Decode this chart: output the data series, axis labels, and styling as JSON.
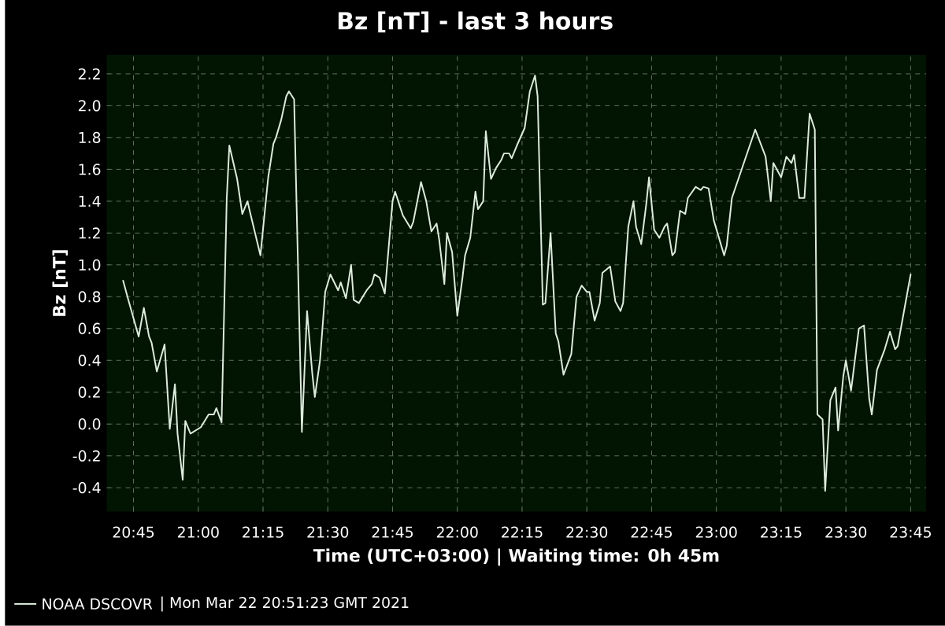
{
  "chart_data": {
    "type": "line",
    "title": "Bz [nT] - last 3 hours",
    "xlabel": "Time (UTC+03:00) | Waiting time: 0h 45m",
    "ylabel": "Bz [nT]",
    "annotations": [
      "| Mon Mar 22 20:51:23 GMT 2021"
    ],
    "xlim": [
      20.647,
      23.81
    ],
    "ylim": [
      -0.55,
      2.32
    ],
    "xticks": [
      {
        "value": 20.75,
        "label": "20:45"
      },
      {
        "value": 21.0,
        "label": "21:00"
      },
      {
        "value": 21.25,
        "label": "21:15"
      },
      {
        "value": 21.5,
        "label": "21:30"
      },
      {
        "value": 21.75,
        "label": "21:45"
      },
      {
        "value": 22.0,
        "label": "22:00"
      },
      {
        "value": 22.25,
        "label": "22:15"
      },
      {
        "value": 22.5,
        "label": "22:30"
      },
      {
        "value": 22.75,
        "label": "22:45"
      },
      {
        "value": 23.0,
        "label": "23:00"
      },
      {
        "value": 23.25,
        "label": "23:15"
      },
      {
        "value": 23.5,
        "label": "23:30"
      },
      {
        "value": 23.75,
        "label": "23:45"
      }
    ],
    "yticks": [
      {
        "value": -0.4,
        "label": "-0.4"
      },
      {
        "value": -0.2,
        "label": "-0.2"
      },
      {
        "value": 0,
        "label": "0.0"
      },
      {
        "value": 0.2,
        "label": "0.2"
      },
      {
        "value": 0.4,
        "label": "0.4"
      },
      {
        "value": 0.6,
        "label": "0.6"
      },
      {
        "value": 0.8,
        "label": "0.8"
      },
      {
        "value": 1.0,
        "label": "1.0"
      },
      {
        "value": 1.2,
        "label": "1.2"
      },
      {
        "value": 1.4,
        "label": "1.4"
      },
      {
        "value": 1.6,
        "label": "1.6"
      },
      {
        "value": 1.8,
        "label": "1.8"
      },
      {
        "value": 2.0,
        "label": "2.0"
      },
      {
        "value": 2.2,
        "label": "2.2"
      }
    ],
    "grid": true,
    "legend": "bottom",
    "marker": "none",
    "line_style": "solid",
    "series": [
      {
        "name": "NOAA DSCOVR",
        "color": "#dcecdc",
        "x": [
          20.71,
          20.73,
          20.77,
          20.79,
          20.81,
          20.82,
          20.84,
          20.87,
          20.89,
          20.91,
          20.92,
          20.94,
          20.95,
          20.97,
          21.01,
          21.04,
          21.06,
          21.07,
          21.09,
          21.11,
          21.12,
          21.15,
          21.17,
          21.19,
          21.2,
          21.24,
          21.27,
          21.29,
          21.3,
          21.32,
          21.34,
          21.35,
          21.37,
          21.4,
          21.42,
          21.44,
          21.45,
          21.47,
          21.49,
          21.51,
          21.54,
          21.55,
          21.57,
          21.59,
          21.6,
          21.62,
          21.65,
          21.67,
          21.68,
          21.7,
          21.72,
          21.75,
          21.76,
          21.79,
          21.82,
          21.83,
          21.86,
          21.88,
          21.9,
          21.92,
          21.93,
          21.95,
          21.96,
          21.98,
          22.0,
          22.02,
          22.03,
          22.05,
          22.07,
          22.08,
          22.1,
          22.11,
          22.13,
          22.15,
          22.17,
          22.18,
          22.2,
          22.21,
          22.23,
          22.26,
          22.28,
          22.3,
          22.31,
          22.33,
          22.34,
          22.36,
          22.38,
          22.39,
          22.41,
          22.44,
          22.46,
          22.48,
          22.5,
          22.51,
          22.53,
          22.55,
          22.56,
          22.59,
          22.61,
          22.63,
          22.64,
          22.66,
          22.68,
          22.69,
          22.71,
          22.73,
          22.74,
          22.76,
          22.78,
          22.8,
          22.81,
          22.83,
          22.84,
          22.86,
          22.88,
          22.89,
          22.92,
          22.94,
          22.95,
          22.97,
          22.99,
          23.03,
          23.04,
          23.06,
          23.15,
          23.19,
          23.21,
          23.22,
          23.25,
          23.27,
          23.29,
          23.3,
          23.32,
          23.34,
          23.36,
          23.38,
          23.39,
          23.41,
          23.42,
          23.44,
          23.46,
          23.47,
          23.49,
          23.5,
          23.52,
          23.54,
          23.55,
          23.57,
          23.59,
          23.6,
          23.62,
          23.65,
          23.67,
          23.69,
          23.7,
          23.75
        ],
        "values": [
          0.9,
          0.78,
          0.55,
          0.73,
          0.55,
          0.51,
          0.33,
          0.5,
          -0.03,
          0.25,
          -0.06,
          -0.35,
          0.02,
          -0.06,
          -0.02,
          0.06,
          0.06,
          0.1,
          0.01,
          1.42,
          1.75,
          1.54,
          1.32,
          1.4,
          1.33,
          1.06,
          1.55,
          1.76,
          1.8,
          1.91,
          2.06,
          2.09,
          2.04,
          -0.05,
          0.71,
          0.32,
          0.17,
          0.4,
          0.83,
          0.94,
          0.84,
          0.89,
          0.79,
          1.0,
          0.78,
          0.76,
          0.84,
          0.88,
          0.94,
          0.92,
          0.82,
          1.4,
          1.46,
          1.31,
          1.23,
          1.27,
          1.52,
          1.4,
          1.21,
          1.26,
          1.16,
          0.88,
          1.2,
          1.08,
          0.68,
          0.92,
          1.06,
          1.17,
          1.46,
          1.35,
          1.4,
          1.84,
          1.54,
          1.61,
          1.66,
          1.7,
          1.7,
          1.67,
          1.75,
          1.86,
          2.09,
          2.19,
          2.06,
          0.75,
          0.76,
          1.2,
          0.57,
          0.52,
          0.31,
          0.44,
          0.8,
          0.87,
          0.83,
          0.83,
          0.65,
          0.76,
          0.95,
          0.99,
          0.77,
          0.71,
          0.76,
          1.24,
          1.4,
          1.24,
          1.13,
          1.39,
          1.55,
          1.22,
          1.17,
          1.24,
          1.26,
          1.06,
          1.08,
          1.34,
          1.32,
          1.42,
          1.49,
          1.47,
          1.49,
          1.48,
          1.28,
          1.06,
          1.12,
          1.42,
          1.85,
          1.68,
          1.4,
          1.64,
          1.55,
          1.68,
          1.64,
          1.69,
          1.42,
          1.42,
          1.95,
          1.85,
          0.06,
          0.03,
          -0.42,
          0.15,
          0.23,
          -0.04,
          0.3,
          0.4,
          0.21,
          0.47,
          0.6,
          0.62,
          0.16,
          0.06,
          0.34,
          0.47,
          0.58,
          0.47,
          0.49,
          0.94
        ]
      }
    ]
  }
}
